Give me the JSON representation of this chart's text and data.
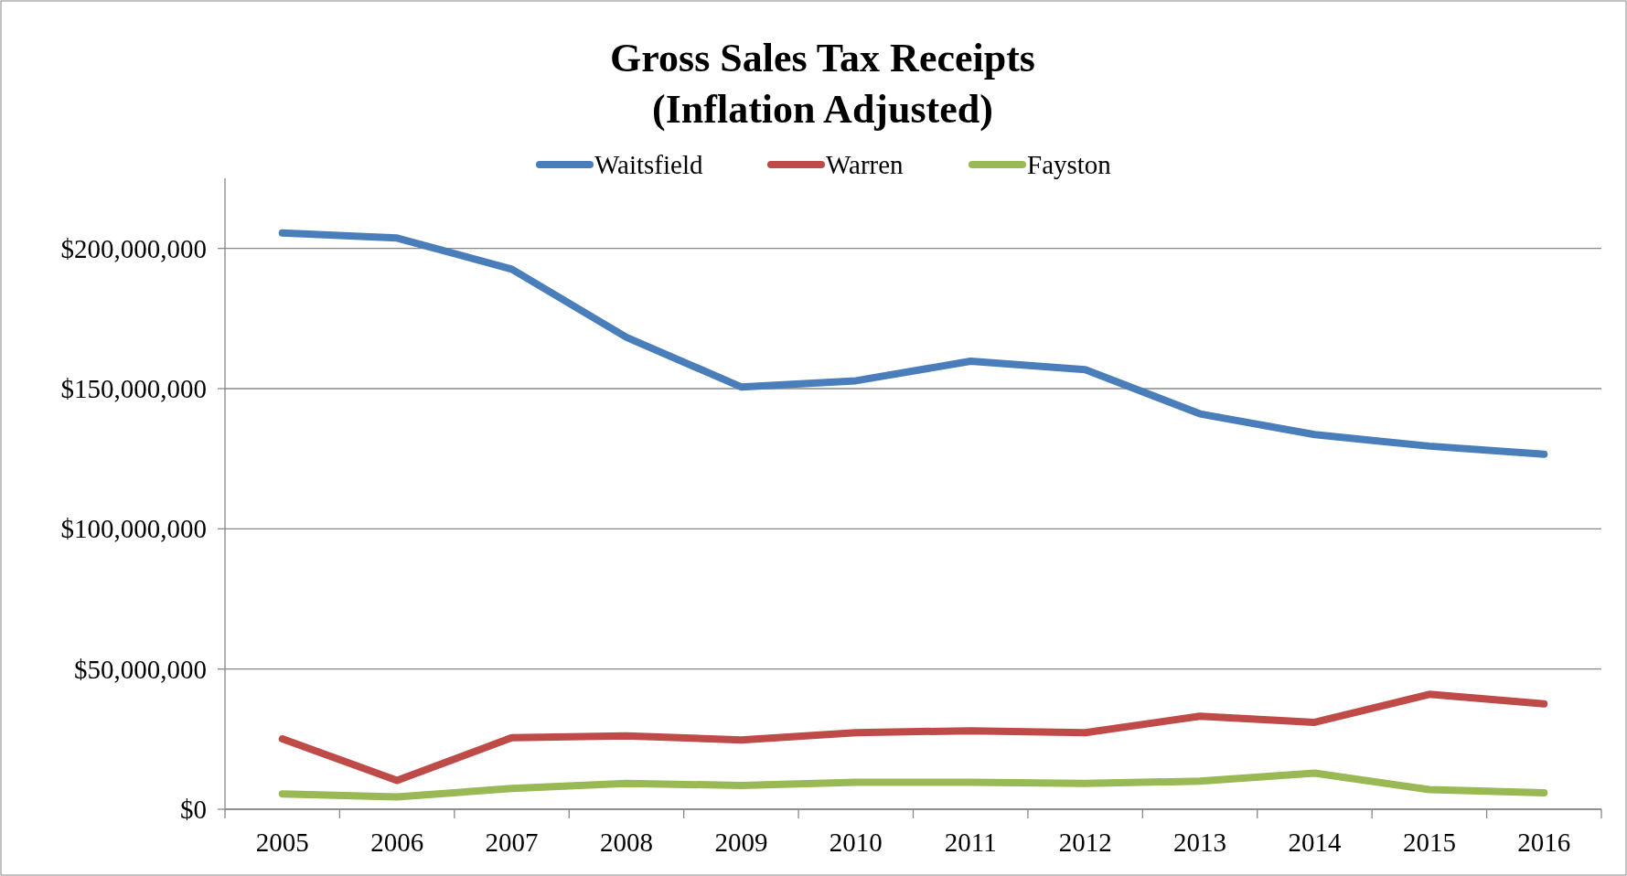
{
  "chart_data": {
    "type": "line",
    "title": "Gross Sales Tax Receipts\n(Inflation Adjusted)",
    "categories": [
      "2005",
      "2006",
      "2007",
      "2008",
      "2009",
      "2010",
      "2011",
      "2012",
      "2013",
      "2014",
      "2015",
      "2016"
    ],
    "series": [
      {
        "name": "Waitsfield",
        "color": "#4a7ebb",
        "values": [
          205500000,
          203700000,
          192600000,
          168300000,
          150600000,
          152800000,
          159800000,
          156800000,
          141000000,
          133600000,
          129500000,
          126600000
        ]
      },
      {
        "name": "Warren",
        "color": "#be4b48",
        "values": [
          25100000,
          10300000,
          25500000,
          26200000,
          24700000,
          27300000,
          28000000,
          27300000,
          33200000,
          31000000,
          41000000,
          37600000
        ]
      },
      {
        "name": "Fayston",
        "color": "#98b954",
        "values": [
          5500000,
          4400000,
          7400000,
          9200000,
          8500000,
          9600000,
          9600000,
          9200000,
          10000000,
          12900000,
          7000000,
          5900000
        ]
      }
    ],
    "ylim": [
      0,
      225000000
    ],
    "yticks": [
      {
        "value": 0,
        "label": "$0"
      },
      {
        "value": 50000000,
        "label": "$50,000,000"
      },
      {
        "value": 100000000,
        "label": "$100,000,000"
      },
      {
        "value": 150000000,
        "label": "$150,000,000"
      },
      {
        "value": 200000000,
        "label": "$200,000,000"
      }
    ],
    "grid": "y",
    "legend": "top",
    "marker": "none",
    "line_style": "solid"
  }
}
